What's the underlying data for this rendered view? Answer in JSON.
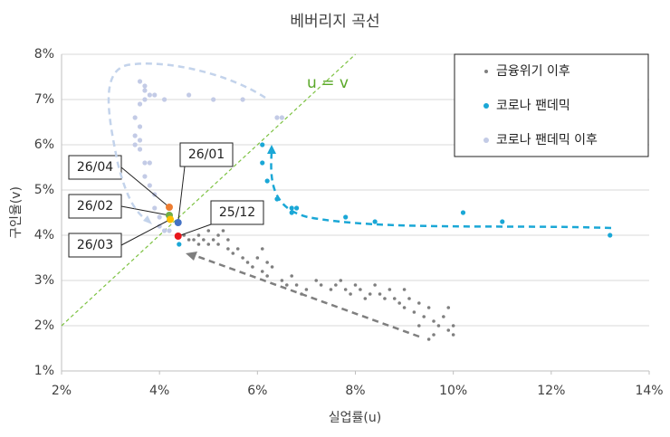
{
  "chart_data": {
    "type": "scatter",
    "title": "베버리지 곡선",
    "x_label": "실업률(u)",
    "y_label": "구인율(v)",
    "xlim": [
      2,
      14
    ],
    "ylim": [
      1,
      8
    ],
    "xticks": [
      {
        "value": 2,
        "label": "2%"
      },
      {
        "value": 4,
        "label": "4%"
      },
      {
        "value": 6,
        "label": "6%"
      },
      {
        "value": 8,
        "label": "8%"
      },
      {
        "value": 10,
        "label": "10%"
      },
      {
        "value": 12,
        "label": "12%"
      },
      {
        "value": 14,
        "label": "14%"
      }
    ],
    "yticks": [
      {
        "value": 1,
        "label": "1%"
      },
      {
        "value": 2,
        "label": "2%"
      },
      {
        "value": 3,
        "label": "3%"
      },
      {
        "value": 4,
        "label": "4%"
      },
      {
        "value": 5,
        "label": "5%"
      },
      {
        "value": 6,
        "label": "6%"
      },
      {
        "value": 7,
        "label": "7%"
      },
      {
        "value": 8,
        "label": "8%"
      }
    ],
    "legend": "top-right",
    "reference_line_label": "u = v",
    "series": [
      {
        "name": "금융위기 이후",
        "color": "#7f7f7f",
        "x": [
          4.5,
          4.6,
          4.7,
          4.8,
          4.8,
          4.9,
          5.0,
          5.0,
          5.1,
          5.2,
          5.2,
          5.3,
          5.4,
          5.4,
          5.5,
          5.6,
          5.7,
          5.8,
          5.9,
          6.0,
          6.1,
          6.1,
          6.2,
          6.2,
          6.3,
          6.5,
          6.6,
          6.7,
          6.8,
          6.9,
          7.0,
          7.2,
          7.3,
          7.5,
          7.6,
          7.7,
          7.8,
          7.9,
          8.0,
          8.1,
          8.2,
          8.3,
          8.4,
          8.5,
          8.6,
          8.7,
          8.8,
          8.9,
          9.0,
          9.0,
          9.1,
          9.2,
          9.3,
          9.4,
          9.5,
          9.6,
          9.6,
          9.7,
          9.8,
          9.9,
          10.0,
          10.0,
          9.5,
          9.9,
          9.3
        ],
        "y": [
          4.0,
          3.9,
          3.9,
          4.0,
          3.8,
          3.9,
          4.1,
          3.8,
          3.9,
          4.0,
          3.8,
          4.1,
          3.9,
          3.7,
          3.6,
          3.7,
          3.5,
          3.4,
          3.3,
          3.5,
          3.7,
          3.2,
          3.4,
          3.1,
          3.3,
          3.0,
          2.9,
          3.1,
          2.9,
          2.7,
          2.8,
          3.0,
          2.9,
          2.8,
          2.9,
          3.0,
          2.8,
          2.7,
          2.9,
          2.8,
          2.6,
          2.7,
          2.9,
          2.7,
          2.6,
          2.8,
          2.6,
          2.5,
          2.8,
          2.4,
          2.6,
          2.3,
          2.5,
          2.2,
          2.4,
          2.1,
          1.8,
          2.0,
          2.2,
          1.9,
          2.0,
          1.8,
          1.7,
          2.4,
          2.0
        ]
      },
      {
        "name": "코로나 팬데믹",
        "color": "#1aa7d6",
        "x": [
          6.1,
          6.1,
          6.2,
          6.4,
          6.7,
          6.7,
          6.8,
          7.8,
          8.4,
          10.2,
          11.0,
          13.2,
          4.4
        ],
        "y": [
          6.0,
          5.6,
          5.2,
          4.8,
          4.6,
          4.5,
          4.6,
          4.4,
          4.3,
          4.5,
          4.3,
          4.0,
          3.8
        ]
      },
      {
        "name": "코로나 팬데믹 이후",
        "color": "#c3cbe6",
        "x": [
          3.6,
          3.7,
          3.7,
          3.8,
          3.9,
          3.6,
          3.5,
          3.6,
          3.5,
          3.5,
          3.6,
          3.7,
          3.8,
          3.7,
          3.8,
          3.9,
          3.9,
          4.0,
          4.0,
          4.1,
          4.2,
          4.1,
          4.6,
          5.1,
          5.7,
          6.4,
          6.5,
          3.7,
          3.6
        ],
        "y": [
          7.4,
          7.3,
          7.2,
          7.1,
          7.1,
          6.9,
          6.6,
          6.4,
          6.2,
          6.0,
          5.9,
          5.6,
          5.6,
          5.3,
          5.1,
          4.9,
          4.6,
          4.4,
          4.2,
          4.1,
          4.1,
          7.0,
          7.1,
          7.0,
          7.0,
          6.6,
          6.6,
          7.0,
          6.1
        ]
      }
    ],
    "annotations": [
      {
        "text": "26/04",
        "x": 4.2,
        "y": 4.62,
        "color": "#ed7d31"
      },
      {
        "text": "26/02",
        "x": 4.2,
        "y": 4.44,
        "color": "#70ad47"
      },
      {
        "text": "26/03",
        "x": 4.22,
        "y": 4.35,
        "color": "#ffc000"
      },
      {
        "text": "26/01",
        "x": 4.38,
        "y": 4.28,
        "color": "#4472c4"
      },
      {
        "text": "25/12",
        "x": 4.38,
        "y": 3.98,
        "color": "#e8161b"
      }
    ]
  }
}
